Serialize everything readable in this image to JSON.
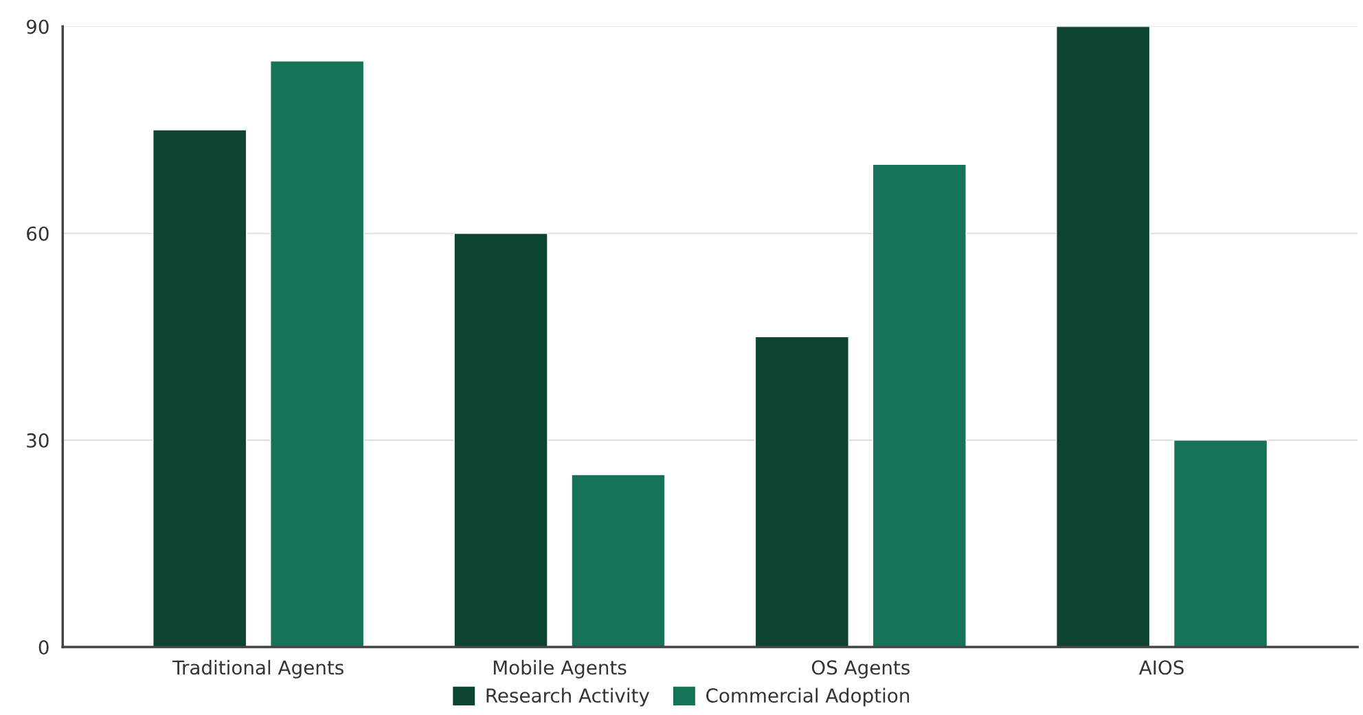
{
  "chart_data": {
    "type": "bar",
    "categories": [
      "Traditional Agents",
      "Mobile Agents",
      "OS Agents",
      "AIOS"
    ],
    "series": [
      {
        "name": "Research Activity",
        "color": "#0d4331",
        "values": [
          75,
          60,
          45,
          90
        ]
      },
      {
        "name": "Commercial Adoption",
        "color": "#167357",
        "values": [
          85,
          25,
          70,
          30
        ]
      }
    ],
    "ylim": [
      0,
      90
    ],
    "yticks": [
      0,
      30,
      60,
      90
    ],
    "grid": "y",
    "legend": "bottom"
  }
}
